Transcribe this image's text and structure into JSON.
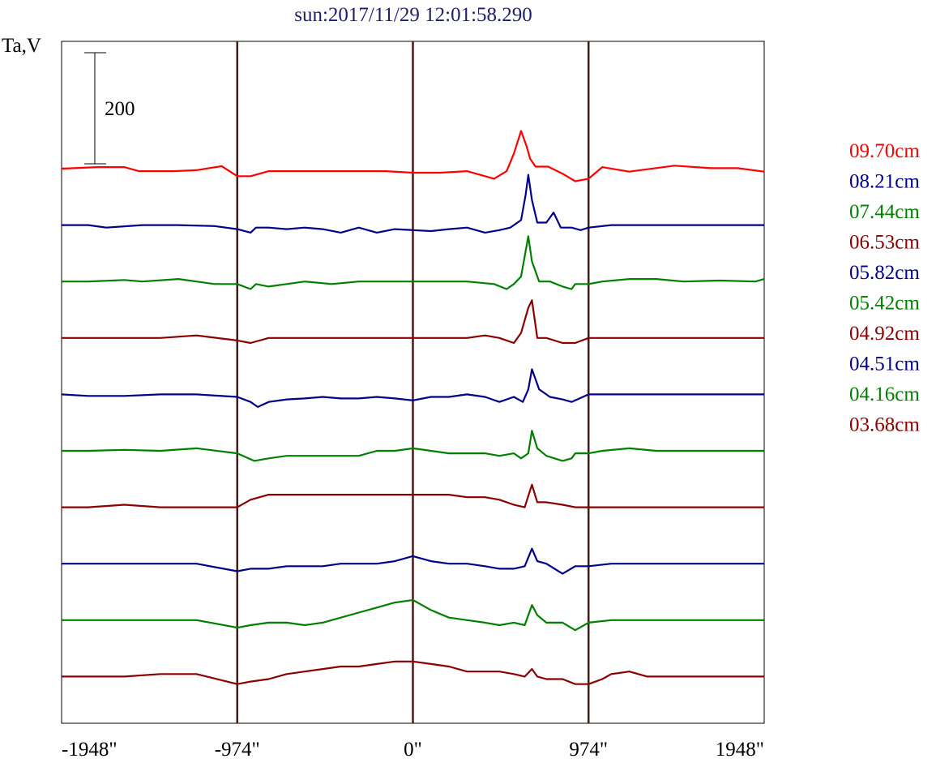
{
  "chart_data": {
    "type": "line",
    "title": "sun:2017/11/29 12:01:58.290",
    "ylabel": "Ta,V",
    "scale_bar_label": "200",
    "xlabel": "",
    "x_ticks": [
      "-1948\"",
      "-974\"",
      "0\"",
      "974\"",
      "1948\""
    ],
    "x_tick_values": [
      -1948,
      -974,
      0,
      974,
      1948
    ],
    "xlim": [
      -1948,
      1948
    ],
    "vertical_markers": [
      -974,
      0,
      974
    ],
    "grid": false,
    "legend_position": "right",
    "series": [
      {
        "name": "09.70cm",
        "color": "#ff0000",
        "x": [
          -1948,
          -1750,
          -1600,
          -1520,
          -1330,
          -1200,
          -1060,
          -974,
          -900,
          -800,
          -600,
          -450,
          -300,
          -150,
          0,
          150,
          300,
          450,
          520,
          560,
          600,
          630,
          650,
          680,
          750,
          830,
          900,
          974,
          1050,
          1200,
          1450,
          1650,
          1800,
          1948
        ],
        "y": [
          0,
          3,
          3,
          -5,
          -5,
          -3,
          5,
          -15,
          -15,
          -5,
          -5,
          -5,
          -5,
          -5,
          -8,
          -8,
          -5,
          -20,
          -5,
          30,
          75,
          45,
          20,
          4,
          4,
          -10,
          -25,
          -20,
          3,
          -6,
          6,
          1,
          1,
          -6
        ]
      },
      {
        "name": "08.21cm",
        "color": "#00008b",
        "x": [
          -1948,
          -1800,
          -1700,
          -1500,
          -1300,
          -1100,
          -974,
          -900,
          -870,
          -800,
          -700,
          -600,
          -500,
          -400,
          -300,
          -200,
          -100,
          0,
          100,
          200,
          300,
          400,
          480,
          540,
          600,
          625,
          640,
          660,
          690,
          740,
          780,
          820,
          880,
          930,
          974,
          1100,
          1300,
          1500,
          1800,
          1948
        ],
        "y": [
          0,
          0,
          -5,
          0,
          0,
          -2,
          -8,
          -15,
          -5,
          -5,
          -8,
          -5,
          -8,
          -15,
          -5,
          -15,
          -8,
          -10,
          -12,
          -8,
          -5,
          -15,
          -10,
          -5,
          10,
          60,
          100,
          50,
          5,
          5,
          25,
          -5,
          -5,
          -10,
          -5,
          0,
          0,
          0,
          0,
          0
        ]
      },
      {
        "name": "07.44cm",
        "color": "#008000",
        "x": [
          -1948,
          -1800,
          -1600,
          -1500,
          -1300,
          -1100,
          -974,
          -900,
          -870,
          -800,
          -700,
          -600,
          -450,
          -300,
          -150,
          0,
          150,
          300,
          450,
          520,
          560,
          600,
          640,
          660,
          700,
          760,
          830,
          880,
          900,
          974,
          1050,
          1200,
          1350,
          1500,
          1700,
          1900,
          1948
        ],
        "y": [
          0,
          0,
          3,
          0,
          5,
          -5,
          -5,
          -15,
          -5,
          -10,
          -5,
          0,
          -5,
          0,
          0,
          0,
          0,
          0,
          -5,
          -15,
          -5,
          10,
          90,
          40,
          0,
          0,
          -10,
          -15,
          -5,
          -5,
          0,
          5,
          5,
          0,
          2,
          0,
          5
        ]
      },
      {
        "name": "06.53cm",
        "color": "#8b0000",
        "x": [
          -1948,
          -1800,
          -1600,
          -1400,
          -1200,
          -974,
          -900,
          -800,
          -700,
          -600,
          -500,
          -400,
          -300,
          -200,
          -100,
          0,
          100,
          200,
          300,
          400,
          480,
          560,
          600,
          640,
          660,
          690,
          740,
          830,
          900,
          974,
          1100,
          1300,
          1500,
          1700,
          1948
        ],
        "y": [
          0,
          0,
          0,
          0,
          5,
          -5,
          -10,
          0,
          0,
          0,
          0,
          0,
          0,
          0,
          0,
          0,
          0,
          0,
          0,
          5,
          0,
          -10,
          10,
          60,
          75,
          0,
          0,
          -10,
          -10,
          0,
          0,
          0,
          0,
          0,
          0
        ]
      },
      {
        "name": "05.82cm",
        "color": "#00008b",
        "x": [
          -1948,
          -1800,
          -1600,
          -1400,
          -1200,
          -974,
          -900,
          -860,
          -800,
          -700,
          -600,
          -500,
          -400,
          -300,
          -200,
          -100,
          0,
          100,
          200,
          300,
          400,
          480,
          560,
          610,
          640,
          660,
          700,
          760,
          830,
          880,
          974,
          1100,
          1300,
          1500,
          1700,
          1948
        ],
        "y": [
          0,
          -3,
          -3,
          0,
          0,
          -5,
          -15,
          -25,
          -15,
          -10,
          -8,
          -5,
          -8,
          -8,
          -5,
          -8,
          -12,
          -5,
          -5,
          0,
          -5,
          -15,
          -5,
          -15,
          10,
          50,
          10,
          -5,
          -10,
          -15,
          0,
          0,
          0,
          0,
          0,
          0
        ]
      },
      {
        "name": "05.42cm",
        "color": "#008000",
        "x": [
          -1948,
          -1800,
          -1600,
          -1400,
          -1200,
          -974,
          -880,
          -800,
          -700,
          -600,
          -450,
          -300,
          -200,
          -100,
          0,
          100,
          200,
          300,
          400,
          480,
          560,
          600,
          640,
          660,
          690,
          740,
          830,
          880,
          900,
          974,
          1050,
          1200,
          1350,
          1500,
          1700,
          1948
        ],
        "y": [
          0,
          0,
          2,
          0,
          5,
          -5,
          -20,
          -15,
          -10,
          -10,
          -10,
          -10,
          0,
          0,
          5,
          0,
          -5,
          -5,
          -5,
          -10,
          -5,
          -15,
          -5,
          40,
          5,
          -10,
          -20,
          -15,
          -5,
          -5,
          0,
          5,
          0,
          0,
          0,
          0
        ]
      },
      {
        "name": "04.92cm",
        "color": "#8b0000",
        "x": [
          -1948,
          -1800,
          -1600,
          -1400,
          -1200,
          -974,
          -900,
          -800,
          -700,
          -600,
          -500,
          -400,
          -300,
          -200,
          -100,
          0,
          100,
          200,
          300,
          400,
          480,
          560,
          620,
          660,
          690,
          740,
          830,
          900,
          974,
          1100,
          1300,
          1500,
          1700,
          1948
        ],
        "y": [
          0,
          0,
          5,
          0,
          0,
          0,
          15,
          25,
          25,
          25,
          25,
          25,
          25,
          25,
          25,
          25,
          25,
          25,
          20,
          20,
          15,
          5,
          0,
          45,
          10,
          10,
          5,
          0,
          0,
          0,
          0,
          0,
          0,
          0
        ]
      },
      {
        "name": "04.51cm",
        "color": "#00008b",
        "x": [
          -1948,
          -1800,
          -1600,
          -1400,
          -1200,
          -974,
          -900,
          -800,
          -700,
          -600,
          -500,
          -400,
          -300,
          -200,
          -100,
          0,
          100,
          200,
          300,
          400,
          480,
          560,
          620,
          660,
          690,
          740,
          830,
          900,
          974,
          1100,
          1300,
          1500,
          1700,
          1948
        ],
        "y": [
          0,
          0,
          0,
          0,
          0,
          -15,
          -10,
          -10,
          -5,
          -5,
          -5,
          0,
          0,
          0,
          5,
          15,
          5,
          0,
          0,
          -5,
          -10,
          -10,
          -5,
          30,
          5,
          0,
          -20,
          -5,
          -5,
          0,
          0,
          0,
          0,
          0
        ]
      },
      {
        "name": "04.16cm",
        "color": "#008000",
        "x": [
          -1948,
          -1800,
          -1600,
          -1400,
          -1200,
          -974,
          -900,
          -800,
          -700,
          -600,
          -500,
          -400,
          -300,
          -200,
          -100,
          0,
          100,
          200,
          300,
          400,
          480,
          560,
          620,
          660,
          690,
          740,
          830,
          900,
          974,
          1100,
          1300,
          1500,
          1700,
          1948
        ],
        "y": [
          0,
          0,
          0,
          0,
          0,
          -15,
          -10,
          -5,
          -5,
          -10,
          -5,
          5,
          15,
          25,
          35,
          40,
          20,
          5,
          0,
          -5,
          -10,
          -5,
          -10,
          30,
          10,
          -5,
          -5,
          -20,
          -5,
          0,
          0,
          0,
          0,
          0
        ]
      },
      {
        "name": "03.68cm",
        "color": "#8b0000",
        "x": [
          -1948,
          -1800,
          -1600,
          -1400,
          -1200,
          -974,
          -900,
          -800,
          -700,
          -600,
          -500,
          -400,
          -300,
          -200,
          -100,
          0,
          100,
          200,
          300,
          400,
          480,
          560,
          620,
          660,
          690,
          740,
          830,
          900,
          974,
          1050,
          1100,
          1200,
          1300,
          1500,
          1700,
          1948
        ],
        "y": [
          0,
          0,
          0,
          5,
          5,
          -15,
          -10,
          -5,
          5,
          10,
          15,
          20,
          20,
          25,
          30,
          30,
          25,
          20,
          10,
          10,
          10,
          5,
          0,
          15,
          0,
          -5,
          -5,
          -15,
          -15,
          -5,
          5,
          10,
          0,
          0,
          0,
          0
        ]
      }
    ]
  }
}
